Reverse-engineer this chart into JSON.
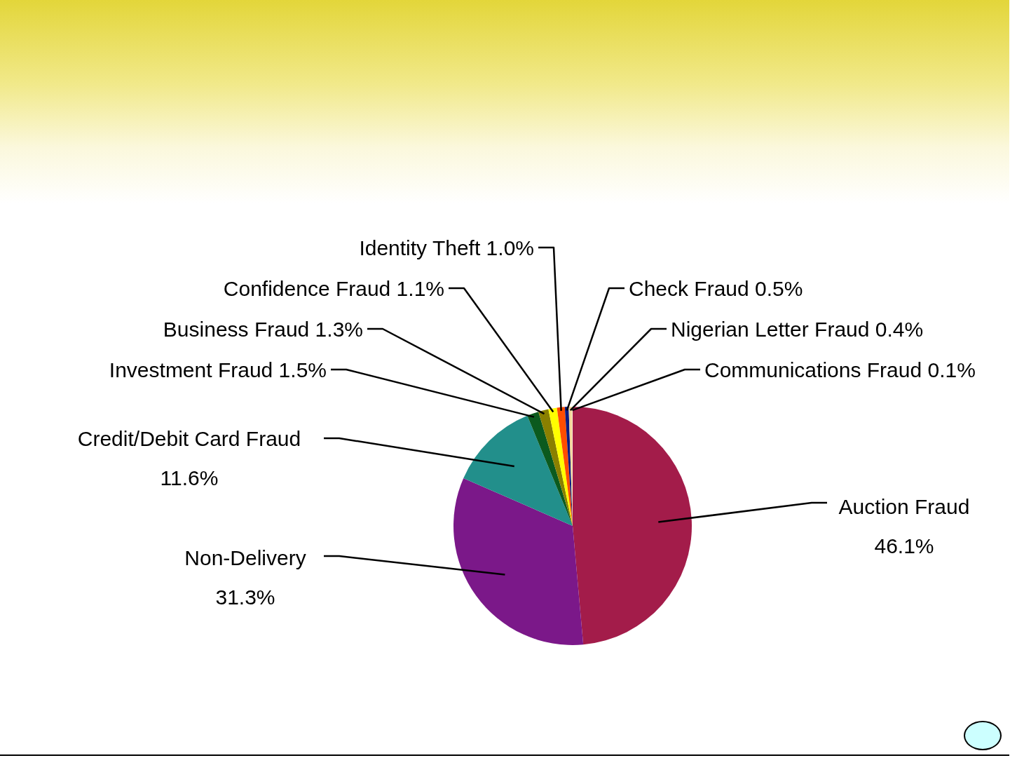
{
  "chart_data": {
    "type": "pie",
    "categories": [
      "Auction Fraud",
      "Non-Delivery",
      "Credit/Debit Card Fraud",
      "Investment Fraud",
      "Business Fraud",
      "Confidence Fraud",
      "Identity Theft",
      "Check Fraud",
      "Nigerian Letter Fraud",
      "Communications Fraud"
    ],
    "values": [
      46.1,
      31.3,
      11.6,
      1.5,
      1.3,
      1.1,
      1.0,
      0.5,
      0.4,
      0.1
    ],
    "colors": [
      "#a31c4a",
      "#7b1889",
      "#228f8b",
      "#0b5a1e",
      "#8a8000",
      "#ffff00",
      "#ff4d00",
      "#0a1a80",
      "#f2d59a",
      "#fff3d8"
    ],
    "value_labels": [
      "46.1%",
      "31.3%",
      "11.6%",
      "1.5%",
      "1.3%",
      "1.1%",
      "1.0%",
      "0.5%",
      "0.4%",
      "0.1%"
    ]
  }
}
